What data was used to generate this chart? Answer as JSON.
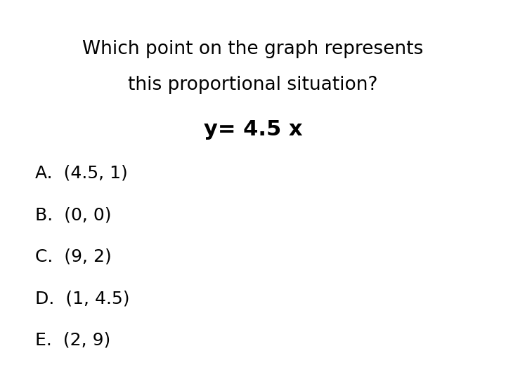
{
  "title_line1": "Which point on the graph represents",
  "title_line2": "this proportional situation?",
  "equation": "y= 4.5 x",
  "choices": [
    "A.  (4.5, 1)",
    "B.  (0, 0)",
    "C.  (9, 2)",
    "D.  (1, 4.5)",
    "E.  (2, 9)"
  ],
  "background_color": "#ffffff",
  "text_color": "#000000",
  "title_fontsize": 19,
  "equation_fontsize": 22,
  "choice_fontsize": 18
}
